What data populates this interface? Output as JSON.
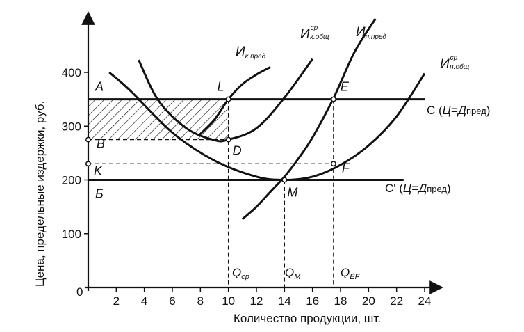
{
  "chart_data": {
    "type": "line",
    "title": "",
    "xlabel": "Количество продукции, шт.",
    "ylabel": "Цена, предельные издержки, руб.",
    "xlim": [
      0,
      25
    ],
    "ylim": [
      0,
      450
    ],
    "x_ticks": [
      2,
      4,
      6,
      8,
      10,
      12,
      14,
      16,
      18,
      20,
      22,
      24
    ],
    "y_ticks": [
      100,
      200,
      300,
      400
    ],
    "origin_label": "0",
    "grid": false,
    "series": [
      {
        "name": "Ик.пред",
        "x": [
          7.9,
          9,
          10,
          11,
          12,
          13
        ],
        "y": [
          283,
          312,
          350,
          378,
          396,
          410
        ]
      },
      {
        "name": "Ик.общ ср",
        "x": [
          3.6,
          5,
          7,
          9,
          10,
          12,
          14,
          16
        ],
        "y": [
          423,
          348,
          296,
          274,
          275,
          296,
          353,
          425
        ]
      },
      {
        "name": "Ип.пред",
        "x": [
          11,
          12,
          13,
          14,
          15,
          16,
          17.5,
          19,
          20.5
        ],
        "y": [
          127,
          150,
          178,
          206,
          240,
          279,
          352,
          438,
          500
        ]
      },
      {
        "name": "Ип.общ ср",
        "x": [
          1.5,
          3,
          6,
          9,
          12,
          14,
          16,
          18,
          20,
          22,
          24
        ],
        "y": [
          400,
          366,
          288,
          236,
          206,
          200,
          206,
          228,
          264,
          318,
          398
        ]
      }
    ],
    "hlines": [
      {
        "label": "С (Ц=Дпред)",
        "y": 350,
        "x_from": 0,
        "x_to": 24
      },
      {
        "label": "С' (Ц=Дпред)",
        "y": 200,
        "x_from": 0,
        "x_to": 22.5
      }
    ],
    "points": [
      {
        "label": "А",
        "x": 0,
        "y": 350
      },
      {
        "label": "L",
        "x": 10,
        "y": 350
      },
      {
        "label": "E",
        "x": 17.5,
        "y": 350
      },
      {
        "label": "B",
        "x": 0,
        "y": 275
      },
      {
        "label": "D",
        "x": 10,
        "y": 275
      },
      {
        "label": "K",
        "x": 0,
        "y": 230
      },
      {
        "label": "F",
        "x": 17.5,
        "y": 230
      },
      {
        "label": "Б",
        "x": 0,
        "y": 200
      },
      {
        "label": "M",
        "x": 14,
        "y": 200
      }
    ],
    "quantity_labels": [
      {
        "label": "Qср",
        "x": 10
      },
      {
        "label": "QM",
        "x": 14
      },
      {
        "label": "QEF",
        "x": 17.5
      }
    ],
    "shaded_region": {
      "x": [
        0,
        10
      ],
      "y": [
        275,
        350
      ],
      "pattern": "hatched"
    }
  }
}
